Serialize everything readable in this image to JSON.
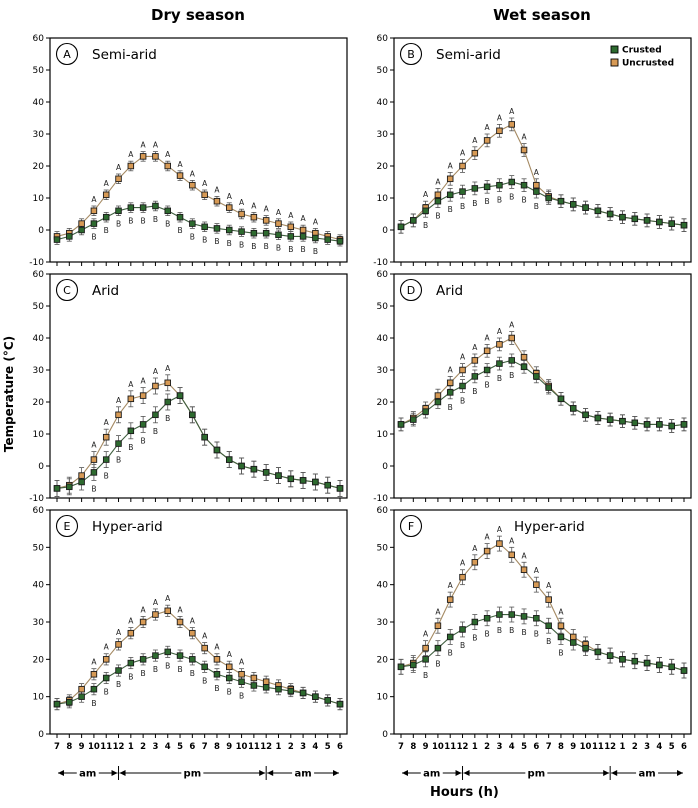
{
  "figure": {
    "col_titles": [
      "Dry season",
      "Wet season"
    ],
    "y_axis_label": "Temperature (°C)",
    "x_axis_label": "Hours (h)",
    "x_tick_labels": [
      "7",
      "8",
      "9",
      "10",
      "11",
      "12",
      "1",
      "2",
      "3",
      "4",
      "5",
      "6",
      "7",
      "8",
      "9",
      "10",
      "11",
      "12",
      "1",
      "2",
      "3",
      "4",
      "5",
      "6"
    ],
    "time_segments": [
      "am",
      "pm",
      "am"
    ],
    "time_boundaries": [
      0,
      5,
      17,
      23
    ],
    "colors": {
      "crusted": "#2d6a2f",
      "uncrusted": "#d79a55",
      "crusted_line": "#3f5f3f",
      "uncrusted_line": "#a58a63",
      "error_bar": "#555555",
      "axis": "#000000"
    }
  },
  "legend": {
    "entries": [
      {
        "label": "Crusted",
        "color": "#2d6a2f"
      },
      {
        "label": "Uncrusted",
        "color": "#d79a55"
      }
    ]
  },
  "chart_data": [
    {
      "id": "A",
      "title": "Semi-arid",
      "season": "Dry",
      "type": "line",
      "ylim": [
        -10,
        60
      ],
      "yticks": [
        -10,
        0,
        10,
        20,
        30,
        40,
        50,
        60
      ],
      "error": 1.5,
      "legend": false,
      "title_offset": 42,
      "series": [
        {
          "name": "Crusted",
          "values": [
            -3,
            -2,
            0,
            2,
            4,
            6,
            7,
            7,
            7.5,
            6,
            4,
            2,
            1,
            0.5,
            0,
            -0.5,
            -1,
            -1,
            -1.5,
            -2,
            -2,
            -2.5,
            -3,
            -3.5
          ]
        },
        {
          "name": "Uncrusted",
          "values": [
            -2,
            -1,
            2,
            6,
            11,
            16,
            20,
            23,
            23,
            20,
            17,
            14,
            11,
            9,
            7,
            5,
            4,
            3,
            2,
            1,
            0,
            -1,
            -2,
            -3
          ]
        }
      ],
      "sig_above": {
        "letter": "A",
        "indices": [
          3,
          4,
          5,
          6,
          7,
          8,
          9,
          10,
          11,
          12,
          13,
          14,
          15,
          16,
          17,
          18,
          19,
          20,
          21
        ]
      },
      "sig_below": {
        "letter": "B",
        "indices": [
          3,
          4,
          5,
          6,
          7,
          8,
          9,
          10,
          11,
          12,
          13,
          14,
          15,
          16,
          17,
          18,
          19,
          20,
          21
        ]
      }
    },
    {
      "id": "B",
      "title": "Semi-arid",
      "season": "Wet",
      "type": "line",
      "ylim": [
        -10,
        60
      ],
      "yticks": [
        -10,
        0,
        10,
        20,
        30,
        40,
        50,
        60
      ],
      "error": 2,
      "legend": true,
      "title_offset": 42,
      "series": [
        {
          "name": "Crusted",
          "values": [
            1,
            3,
            6,
            9,
            11,
            12,
            13,
            13.5,
            14,
            15,
            14,
            12,
            10,
            9,
            8,
            7,
            6,
            5,
            4,
            3.5,
            3,
            2.5,
            2,
            1.5
          ]
        },
        {
          "name": "Uncrusted",
          "values": [
            1,
            3,
            7,
            11,
            16,
            20,
            24,
            28,
            31,
            33,
            25,
            14,
            10.5,
            9,
            8,
            7,
            6,
            5,
            4,
            3.5,
            3,
            2.5,
            2,
            1.5
          ]
        }
      ],
      "sig_above": {
        "letter": "A",
        "indices": [
          2,
          3,
          4,
          5,
          6,
          7,
          8,
          9,
          10,
          11
        ]
      },
      "sig_below": {
        "letter": "B",
        "indices": [
          2,
          3,
          4,
          5,
          6,
          7,
          8,
          9,
          10,
          11
        ]
      }
    },
    {
      "id": "C",
      "title": "Arid",
      "season": "Dry",
      "type": "line",
      "ylim": [
        -10,
        60
      ],
      "yticks": [
        -10,
        0,
        10,
        20,
        30,
        40,
        50,
        60
      ],
      "error": 2.5,
      "legend": false,
      "title_offset": 42,
      "series": [
        {
          "name": "Crusted",
          "values": [
            -7,
            -6.5,
            -5,
            -2,
            2,
            7,
            11,
            13,
            16,
            20,
            22,
            16,
            9,
            5,
            2,
            0,
            -1,
            -2,
            -3,
            -4,
            -4.5,
            -5,
            -6,
            -7
          ]
        },
        {
          "name": "Uncrusted",
          "values": [
            -7,
            -6,
            -3,
            2,
            9,
            16,
            21,
            22,
            25,
            26,
            22,
            16,
            9,
            5,
            2,
            0,
            -1,
            -2,
            -3,
            -4,
            -4.5,
            -5,
            -6,
            -7
          ]
        }
      ],
      "sig_above": {
        "letter": "A",
        "indices": [
          3,
          4,
          5,
          6,
          7,
          8,
          9
        ]
      },
      "sig_below": {
        "letter": "B",
        "indices": [
          3,
          4,
          5,
          6,
          7,
          8,
          9
        ]
      }
    },
    {
      "id": "D",
      "title": "Arid",
      "season": "Wet",
      "type": "line",
      "ylim": [
        -10,
        60
      ],
      "yticks": [
        -10,
        0,
        10,
        20,
        30,
        40,
        50,
        60
      ],
      "error": 2,
      "legend": false,
      "title_offset": 42,
      "series": [
        {
          "name": "Crusted",
          "values": [
            13,
            14.5,
            17,
            20,
            23,
            25,
            28,
            30,
            32,
            33,
            31,
            28,
            24.5,
            21,
            18,
            16,
            15,
            14.5,
            14,
            13.5,
            13,
            13,
            12.5,
            13
          ]
        },
        {
          "name": "Uncrusted",
          "values": [
            13,
            15,
            18,
            22,
            26,
            30,
            33,
            36,
            38,
            40,
            34,
            29,
            25,
            21,
            18,
            16,
            15,
            14.5,
            14,
            13.5,
            13,
            13,
            12.5,
            13
          ]
        }
      ],
      "sig_above": {
        "letter": "A",
        "indices": [
          4,
          5,
          6,
          7,
          8,
          9
        ]
      },
      "sig_below": {
        "letter": "B",
        "indices": [
          4,
          5,
          6,
          7,
          8,
          9
        ]
      }
    },
    {
      "id": "E",
      "title": "Hyper-arid",
      "season": "Dry",
      "type": "line",
      "ylim": [
        0,
        60
      ],
      "yticks": [
        0,
        10,
        20,
        30,
        40,
        50,
        60
      ],
      "error": 1.5,
      "legend": false,
      "title_offset": 42,
      "series": [
        {
          "name": "Crusted",
          "values": [
            8,
            8.5,
            10,
            12,
            15,
            17,
            19,
            20,
            21,
            22,
            21,
            20,
            18,
            16,
            15,
            14,
            13,
            12.5,
            12,
            11.5,
            11,
            10,
            9,
            8
          ]
        },
        {
          "name": "Uncrusted",
          "values": [
            8,
            9,
            12,
            16,
            20,
            24,
            27,
            30,
            32,
            33,
            30,
            27,
            23,
            20,
            18,
            16,
            15,
            14,
            13,
            12,
            11,
            10,
            9,
            8
          ]
        }
      ],
      "sig_above": {
        "letter": "A",
        "indices": [
          3,
          4,
          5,
          6,
          7,
          8,
          9,
          10,
          11,
          12,
          13,
          14,
          15
        ]
      },
      "sig_below": {
        "letter": "B",
        "indices": [
          3,
          4,
          5,
          6,
          7,
          8,
          9,
          10,
          11,
          12,
          13,
          14,
          15
        ]
      }
    },
    {
      "id": "F",
      "title": "Hyper-arid",
      "season": "Wet",
      "type": "line",
      "ylim": [
        0,
        60
      ],
      "yticks": [
        0,
        10,
        20,
        30,
        40,
        50,
        60
      ],
      "error": 2,
      "legend": false,
      "title_offset": 120,
      "series": [
        {
          "name": "Crusted",
          "values": [
            18,
            18.5,
            20,
            23,
            26,
            28,
            30,
            31,
            32,
            32,
            31.5,
            31,
            29,
            26,
            24.5,
            23,
            22,
            21,
            20,
            19.5,
            19,
            18.5,
            18,
            17
          ]
        },
        {
          "name": "Uncrusted",
          "values": [
            18,
            19,
            23,
            29,
            36,
            42,
            46,
            49,
            51,
            48,
            44,
            40,
            36,
            29,
            26,
            24,
            22,
            21,
            20,
            19.5,
            19,
            18.5,
            18,
            17
          ]
        }
      ],
      "sig_above": {
        "letter": "A",
        "indices": [
          2,
          3,
          4,
          5,
          6,
          7,
          8,
          9,
          10,
          11,
          12,
          13
        ]
      },
      "sig_below": {
        "letter": "B",
        "indices": [
          2,
          3,
          4,
          5,
          6,
          7,
          8,
          9,
          10,
          11,
          12,
          13
        ]
      }
    }
  ]
}
